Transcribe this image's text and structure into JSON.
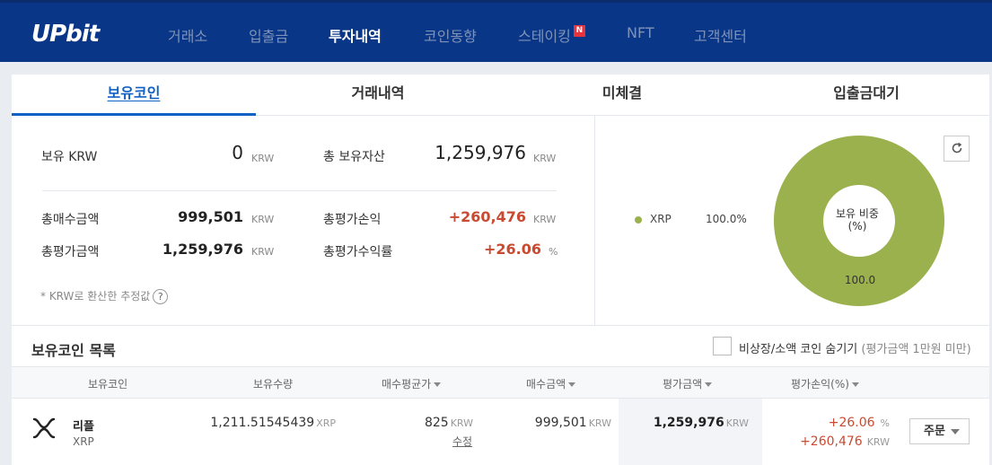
{
  "header": {
    "logo": "UPbit",
    "nav": [
      "거래소",
      "입출금",
      "투자내역",
      "코인동향",
      "스테이킹",
      "NFT",
      "고객센터"
    ],
    "active_nav": "투자내역",
    "new_badge": "N"
  },
  "tabs": [
    "보유코인",
    "거래내역",
    "미체결",
    "입출금대기"
  ],
  "active_tab": "보유코인",
  "summary": {
    "holding_krw_label": "보유 KRW",
    "holding_krw_value": "0",
    "total_assets_label": "총 보유자산",
    "total_assets_value": "1,259,976",
    "total_buy_label": "총매수금액",
    "total_buy_value": "999,501",
    "total_pl_label": "총평가손익",
    "total_pl_value": "+260,476",
    "total_eval_label": "총평가금액",
    "total_eval_value": "1,259,976",
    "total_rate_label": "총평가수익률",
    "total_rate_value": "+26.06",
    "unit_krw": "KRW",
    "unit_pct": "%",
    "note": "* KRW로 환산한 추정값",
    "note_icon": "?"
  },
  "allocation": {
    "legend": [
      {
        "name": "XRP",
        "value": "100.0%",
        "color": "#9bb14d"
      }
    ],
    "center_title": "보유 비중",
    "center_sub": "(%)",
    "slice_label": "100.0",
    "slice_share": 100.0
  },
  "list": {
    "title": "보유코인 목록",
    "hide_label": "비상장/소액 코인 숨기기",
    "hide_sub": "(평가금액 1만원 미만)",
    "columns": [
      "보유코인",
      "보유수량",
      "매수평균가",
      "매수금액",
      "평가금액",
      "평가손익(%)"
    ],
    "rows": [
      {
        "name": "리플",
        "symbol": "XRP",
        "quantity": "1,211.51545439",
        "quantity_unit": "XRP",
        "avg_price": "825",
        "avg_unit": "KRW",
        "edit": "수정",
        "buy_amount": "999,501",
        "buy_unit": "KRW",
        "eval_amount": "1,259,976",
        "eval_unit": "KRW",
        "pl_rate": "+26.06",
        "pl_rate_unit": "%",
        "pl_amount": "+260,476",
        "pl_amount_unit": "KRW",
        "order_label": "주문"
      }
    ]
  }
}
